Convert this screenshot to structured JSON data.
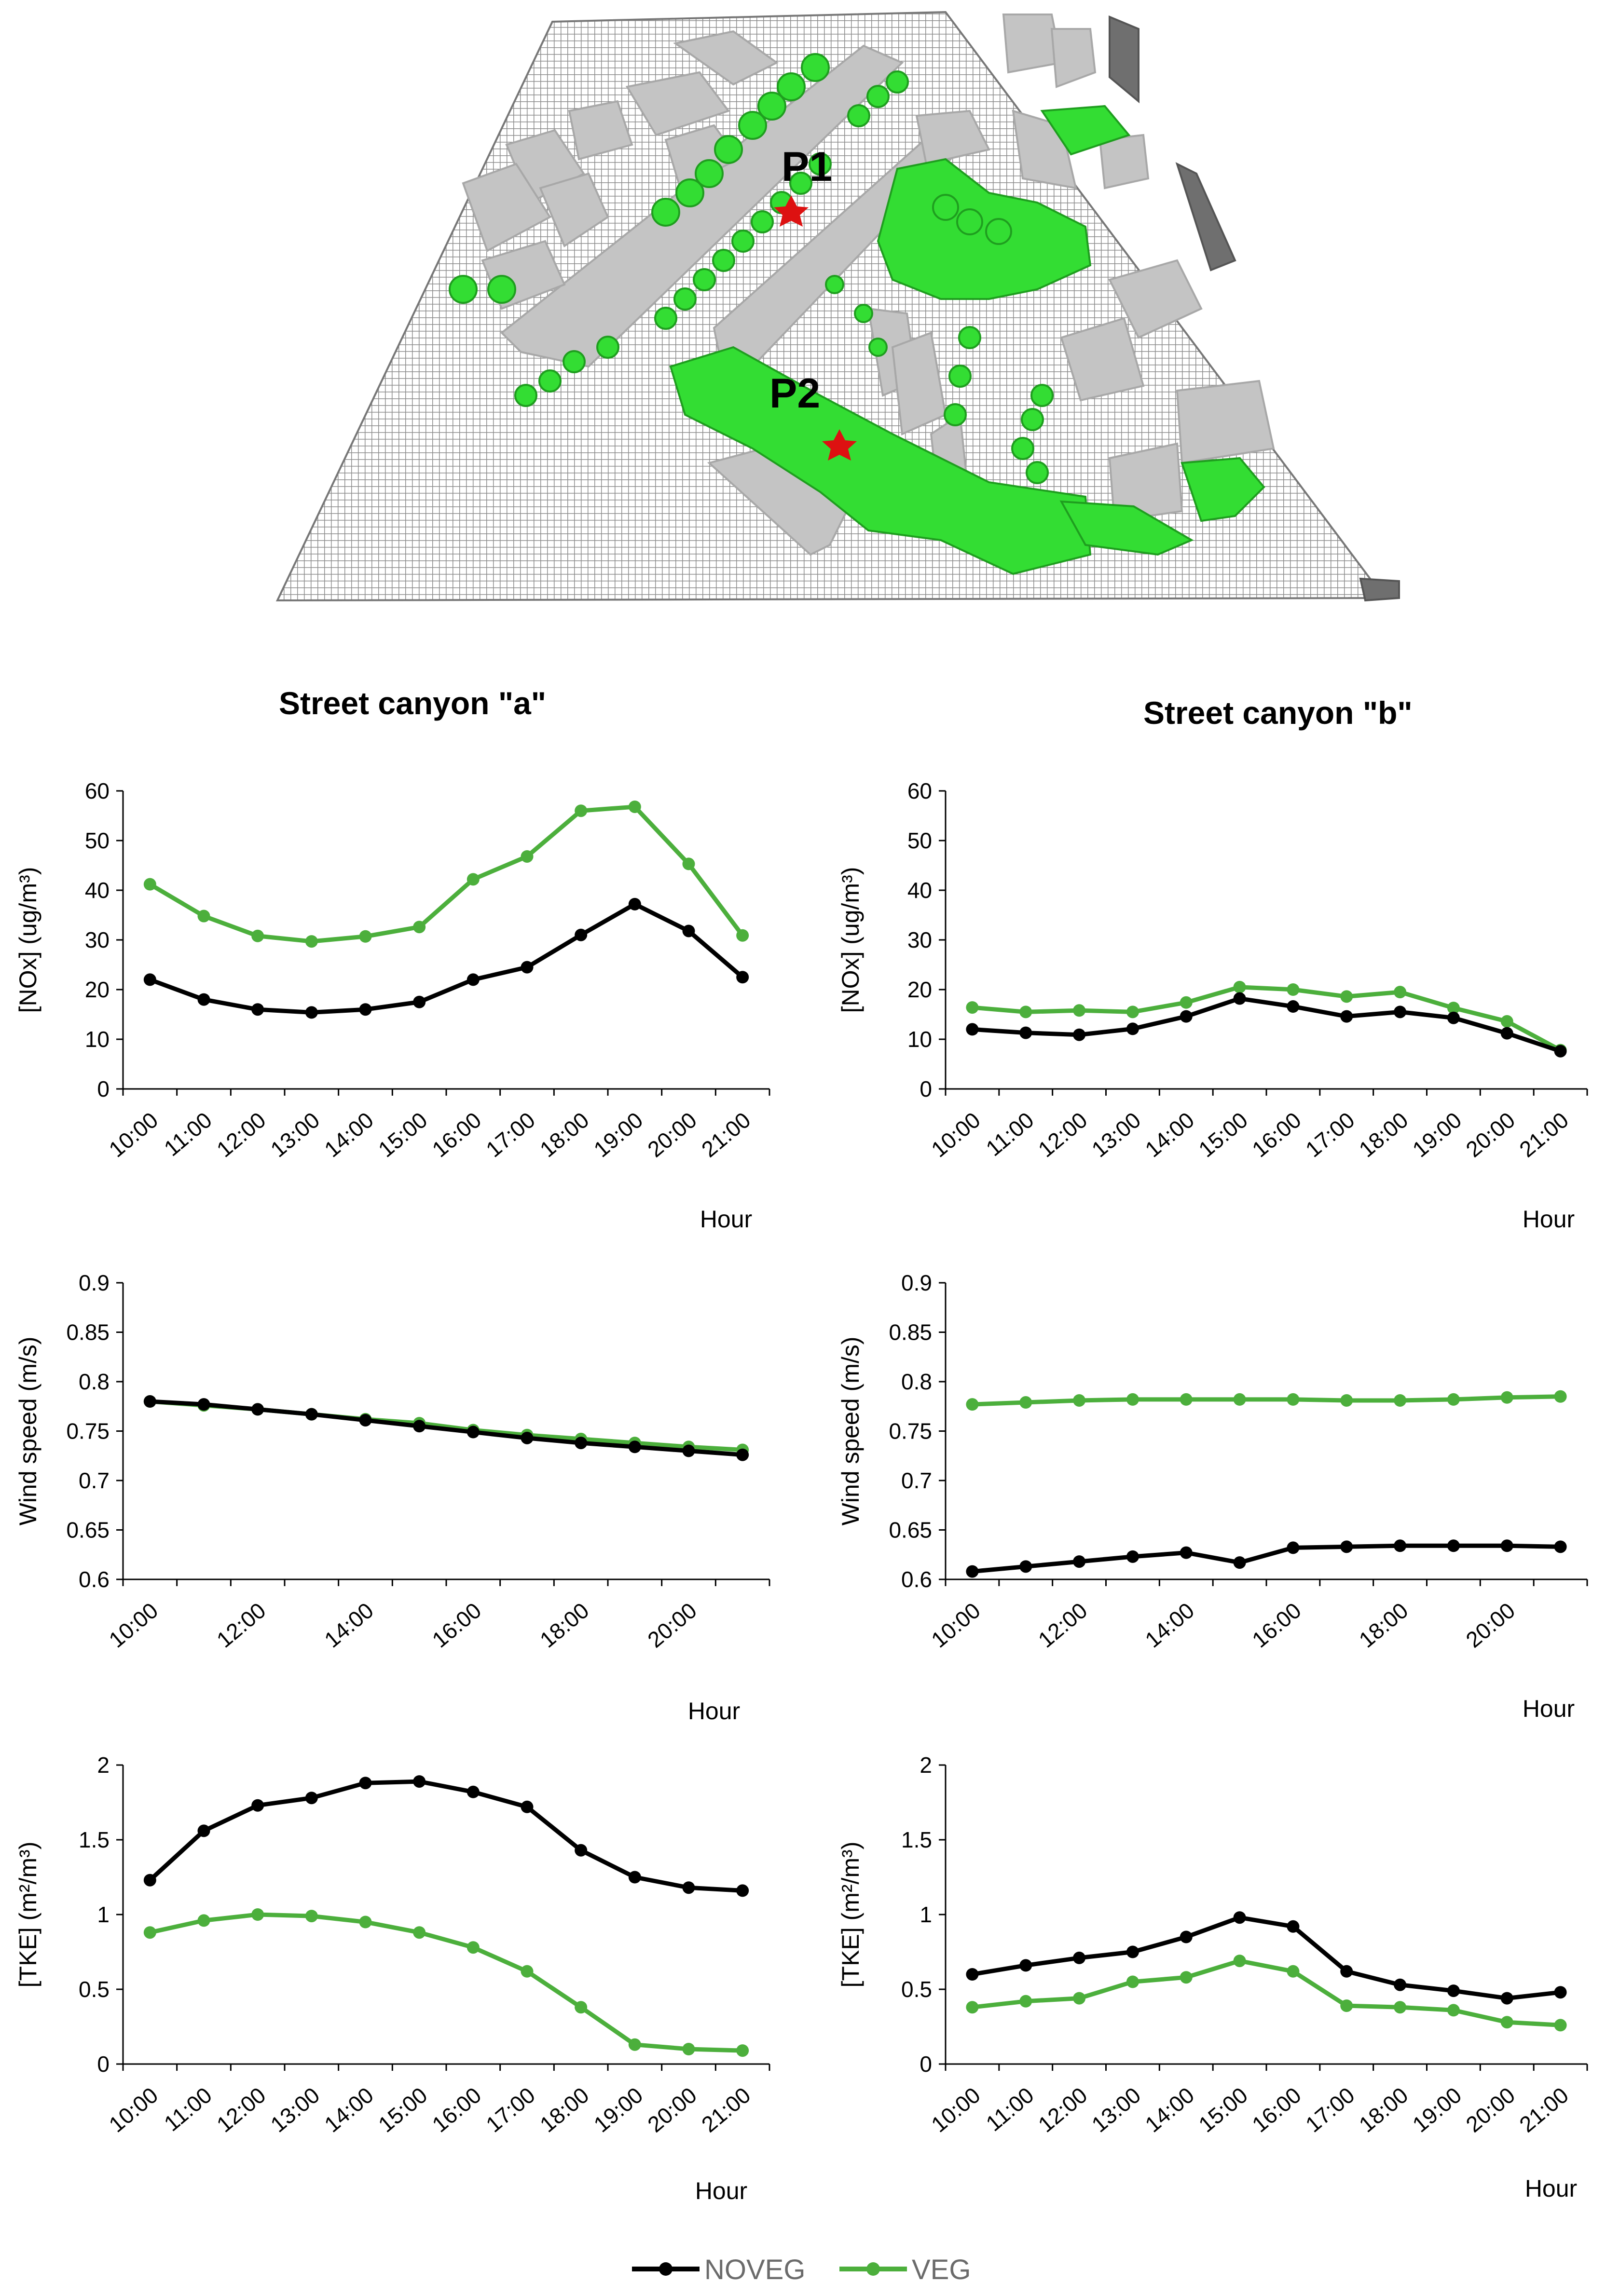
{
  "scene": {
    "markers": [
      {
        "label": "P1"
      },
      {
        "label": "P2"
      }
    ],
    "colors": {
      "ground": "#9a9a9a",
      "building": "#c4c4c4",
      "vegetation": "#33dd33",
      "marker": "#dd1111"
    }
  },
  "column_titles": {
    "a": "Street canyon \"a\"",
    "b": "Street canyon \"b\""
  },
  "legend": {
    "items": [
      {
        "name": "NOVEG",
        "color": "#000000"
      },
      {
        "name": "VEG",
        "color": "#4caf3c"
      }
    ]
  },
  "chart_data": [
    {
      "id": "nox_a",
      "type": "line",
      "canyon": "a",
      "ylabel": "[NOx] (ug/m³)",
      "xlabel": "Hour",
      "ylim": [
        0,
        60
      ],
      "yticks": [
        "0",
        "10",
        "20",
        "30",
        "40",
        "50",
        "60"
      ],
      "categories": [
        "10:00",
        "11:00",
        "12:00",
        "13:00",
        "14:00",
        "15:00",
        "16:00",
        "17:00",
        "18:00",
        "19:00",
        "20:00",
        "21:00"
      ],
      "xtick_labels": [
        "10:00",
        "11:00",
        "12:00",
        "13:00",
        "14:00",
        "15:00",
        "16:00",
        "17:00",
        "18:00",
        "19:00",
        "20:00",
        "21:00"
      ],
      "series": [
        {
          "name": "NOVEG",
          "values": [
            22,
            18,
            16,
            15.4,
            16,
            17.5,
            22,
            24.5,
            31,
            37.2,
            31.8,
            22.5
          ]
        },
        {
          "name": "VEG",
          "values": [
            41.2,
            34.8,
            30.8,
            29.7,
            30.7,
            32.6,
            42.2,
            46.8,
            56,
            56.8,
            45.3,
            30.9
          ]
        }
      ]
    },
    {
      "id": "nox_b",
      "type": "line",
      "canyon": "b",
      "ylabel": "[NOx] (ug/m³)",
      "xlabel": "Hour",
      "ylim": [
        0,
        60
      ],
      "yticks": [
        "0",
        "10",
        "20",
        "30",
        "40",
        "50",
        "60"
      ],
      "categories": [
        "10:00",
        "11:00",
        "12:00",
        "13:00",
        "14:00",
        "15:00",
        "16:00",
        "17:00",
        "18:00",
        "19:00",
        "20:00",
        "21:00"
      ],
      "xtick_labels": [
        "10:00",
        "11:00",
        "12:00",
        "13:00",
        "14:00",
        "15:00",
        "16:00",
        "17:00",
        "18:00",
        "19:00",
        "20:00",
        "21:00"
      ],
      "series": [
        {
          "name": "NOVEG",
          "values": [
            12,
            11.3,
            10.9,
            12.1,
            14.6,
            18.2,
            16.6,
            14.6,
            15.5,
            14.3,
            11.2,
            7.6
          ]
        },
        {
          "name": "VEG",
          "values": [
            16.4,
            15.5,
            15.8,
            15.5,
            17.4,
            20.5,
            20,
            18.6,
            19.5,
            16.3,
            13.6,
            7.8
          ]
        }
      ]
    },
    {
      "id": "wind_a",
      "type": "line",
      "canyon": "a",
      "ylabel": "Wind speed (m/s)",
      "xlabel": "Hour",
      "ylim": [
        0.6,
        0.9
      ],
      "yticks": [
        "0.6",
        "0.65",
        "0.7",
        "0.75",
        "0.8",
        "0.85",
        "0.9"
      ],
      "categories": [
        "10:00",
        "11:00",
        "12:00",
        "13:00",
        "14:00",
        "15:00",
        "16:00",
        "17:00",
        "18:00",
        "19:00",
        "20:00",
        "21:00"
      ],
      "xtick_labels": [
        "10:00",
        "",
        "12:00",
        "",
        "14:00",
        "",
        "16:00",
        "",
        "18:00",
        "",
        "20:00",
        ""
      ],
      "series": [
        {
          "name": "NOVEG",
          "values": [
            0.78,
            0.777,
            0.772,
            0.767,
            0.761,
            0.755,
            0.749,
            0.743,
            0.738,
            0.734,
            0.73,
            0.726
          ]
        },
        {
          "name": "VEG",
          "values": [
            0.78,
            0.776,
            0.772,
            0.767,
            0.762,
            0.758,
            0.751,
            0.746,
            0.742,
            0.738,
            0.734,
            0.731
          ]
        }
      ]
    },
    {
      "id": "wind_b",
      "type": "line",
      "canyon": "b",
      "ylabel": "Wind speed (m/s)",
      "xlabel": "Hour",
      "ylim": [
        0.6,
        0.9
      ],
      "yticks": [
        "0.6",
        "0.65",
        "0.7",
        "0.75",
        "0.8",
        "0.85",
        "0.9"
      ],
      "categories": [
        "10:00",
        "11:00",
        "12:00",
        "13:00",
        "14:00",
        "15:00",
        "16:00",
        "17:00",
        "18:00",
        "19:00",
        "20:00",
        "21:00"
      ],
      "xtick_labels": [
        "10:00",
        "",
        "12:00",
        "",
        "14:00",
        "",
        "16:00",
        "",
        "18:00",
        "",
        "20:00",
        ""
      ],
      "series": [
        {
          "name": "NOVEG",
          "values": [
            0.608,
            0.613,
            0.618,
            0.623,
            0.627,
            0.617,
            0.632,
            0.633,
            0.634,
            0.634,
            0.634,
            0.633
          ]
        },
        {
          "name": "VEG",
          "values": [
            0.777,
            0.779,
            0.781,
            0.782,
            0.782,
            0.782,
            0.782,
            0.781,
            0.781,
            0.782,
            0.784,
            0.785
          ]
        }
      ]
    },
    {
      "id": "tke_a",
      "type": "line",
      "canyon": "a",
      "ylabel": "[TKE] (m²/m³)",
      "xlabel": "Hour",
      "ylim": [
        0,
        2
      ],
      "yticks": [
        "0",
        "0.5",
        "1",
        "1.5",
        "2"
      ],
      "categories": [
        "10:00",
        "11:00",
        "12:00",
        "13:00",
        "14:00",
        "15:00",
        "16:00",
        "17:00",
        "18:00",
        "19:00",
        "20:00",
        "21:00"
      ],
      "xtick_labels": [
        "10:00",
        "11:00",
        "12:00",
        "13:00",
        "14:00",
        "15:00",
        "16:00",
        "17:00",
        "18:00",
        "19:00",
        "20:00",
        "21:00"
      ],
      "series": [
        {
          "name": "NOVEG",
          "values": [
            1.23,
            1.56,
            1.73,
            1.78,
            1.88,
            1.89,
            1.82,
            1.72,
            1.43,
            1.25,
            1.18,
            1.16
          ]
        },
        {
          "name": "VEG",
          "values": [
            0.88,
            0.96,
            1.0,
            0.99,
            0.95,
            0.88,
            0.78,
            0.62,
            0.38,
            0.13,
            0.1,
            0.09
          ]
        }
      ]
    },
    {
      "id": "tke_b",
      "type": "line",
      "canyon": "b",
      "ylabel": "[TKE] (m²/m³)",
      "xlabel": "Hour",
      "ylim": [
        0,
        2
      ],
      "yticks": [
        "0",
        "0.5",
        "1",
        "1.5",
        "2"
      ],
      "categories": [
        "10:00",
        "11:00",
        "12:00",
        "13:00",
        "14:00",
        "15:00",
        "16:00",
        "17:00",
        "18:00",
        "19:00",
        "20:00",
        "21:00"
      ],
      "xtick_labels": [
        "10:00",
        "11:00",
        "12:00",
        "13:00",
        "14:00",
        "15:00",
        "16:00",
        "17:00",
        "18:00",
        "19:00",
        "20:00",
        "21:00"
      ],
      "series": [
        {
          "name": "NOVEG",
          "values": [
            0.6,
            0.66,
            0.71,
            0.75,
            0.85,
            0.98,
            0.92,
            0.62,
            0.53,
            0.49,
            0.44,
            0.48
          ]
        },
        {
          "name": "VEG",
          "values": [
            0.38,
            0.42,
            0.44,
            0.55,
            0.58,
            0.69,
            0.62,
            0.39,
            0.38,
            0.36,
            0.28,
            0.26
          ]
        }
      ]
    }
  ]
}
